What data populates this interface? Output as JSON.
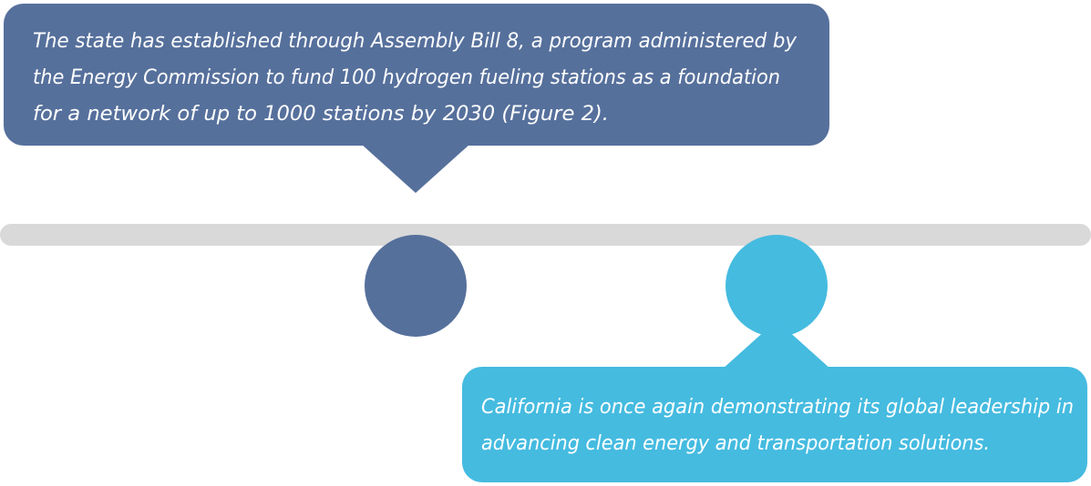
{
  "callouts": [
    {
      "lines": [
        "The state has established through Assembly Bill 8, a program administered by",
        "the Energy Commission to fund 100 hydrogen fueling stations as a foundation",
        "for a network of up to 1000 stations by 2030 (Figure 2)."
      ]
    },
    {
      "lines": [
        "California is once again demonstrating its global leadership in",
        "advancing clean energy and transportation solutions."
      ]
    }
  ]
}
